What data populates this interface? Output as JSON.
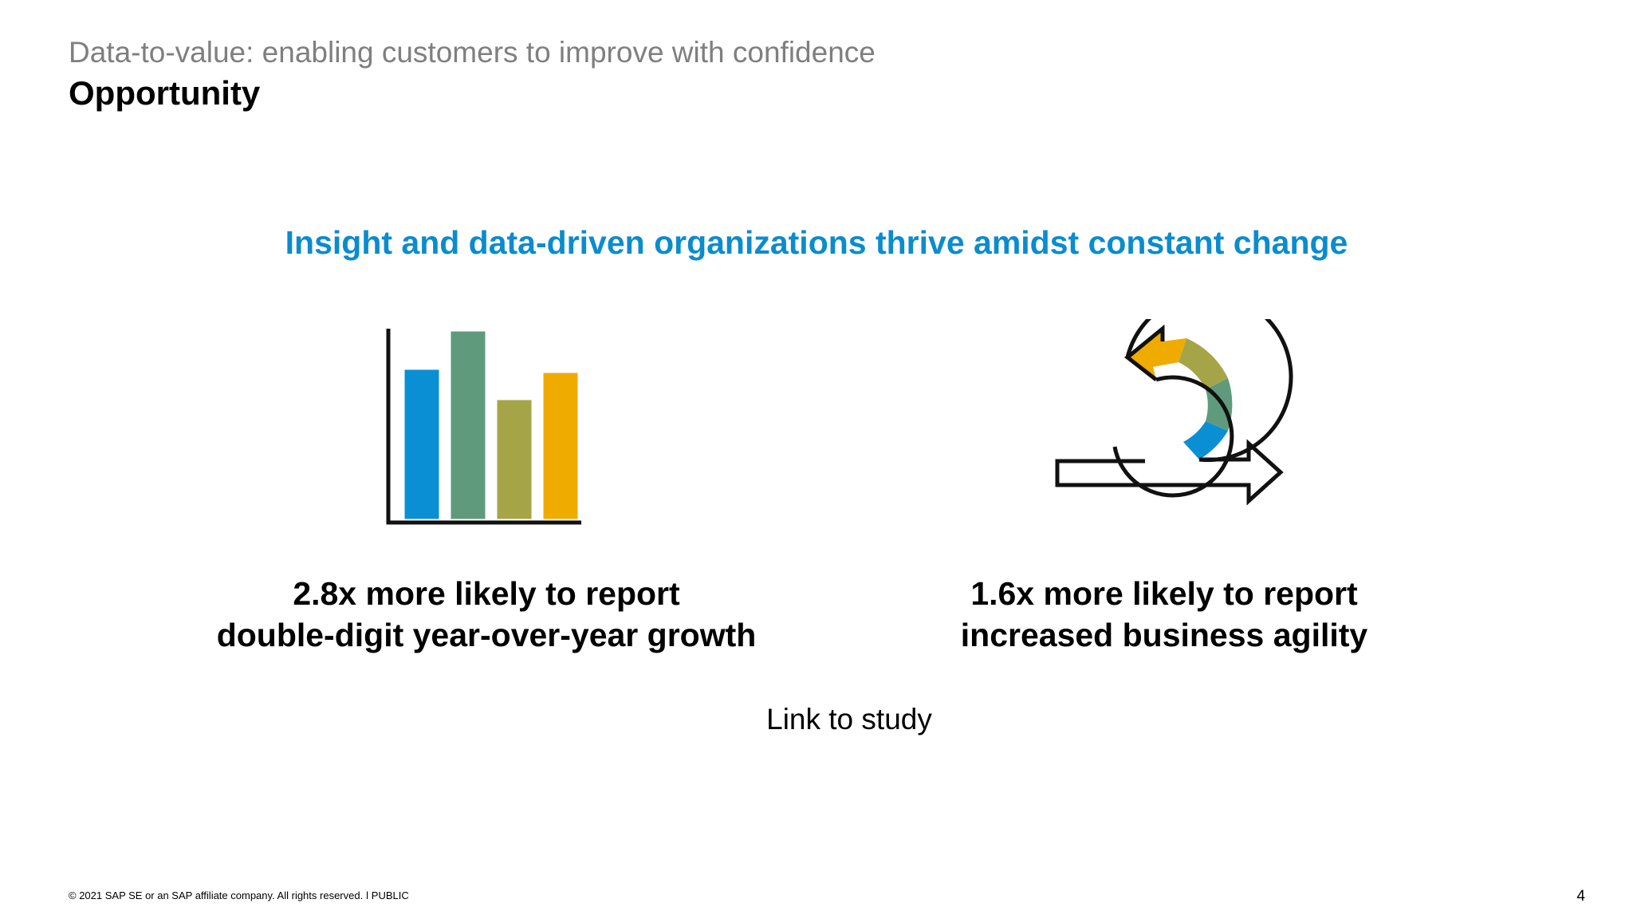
{
  "slide": {
    "supertitle": "Data-to-value: enabling customers to improve with confidence",
    "title": "Opportunity",
    "headline": "Insight and data-driven organizations thrive amidst constant change",
    "stats": [
      {
        "icon": "bar-chart-icon",
        "line1": "2.8x more likely to report",
        "line2": "double-digit year-over-year growth"
      },
      {
        "icon": "agile-cycle-icon",
        "line1": "1.6x more likely to report",
        "line2": "increased business agility"
      }
    ],
    "link_label": "Link to study",
    "footer": "© 2021 SAP SE or an SAP affiliate company. All rights reserved.  ǀ  PUBLIC",
    "page_number": "4"
  },
  "colors": {
    "headline": "#0a8ccd",
    "supertitle": "#7f7f7f",
    "bar_blue": "#0a8fd4",
    "bar_teal": "#5f9a7d",
    "bar_olive": "#a5a548",
    "bar_gold": "#efab00"
  }
}
